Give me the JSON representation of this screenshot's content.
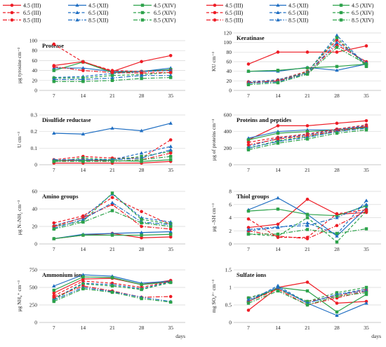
{
  "legend": [
    {
      "label": "4.5 (III)",
      "color": "#ee1c25",
      "dash": "solid",
      "marker": "circle"
    },
    {
      "label": "4.5 (XII)",
      "color": "#1f6ec2",
      "dash": "solid",
      "marker": "triangle"
    },
    {
      "label": "4.5 (XIV)",
      "color": "#2ca24a",
      "dash": "solid",
      "marker": "square"
    },
    {
      "label": "6.5 (III)",
      "color": "#ee1c25",
      "dash": "dash",
      "marker": "circle"
    },
    {
      "label": "6.5 (XII)",
      "color": "#1f6ec2",
      "dash": "dash",
      "marker": "triangle"
    },
    {
      "label": "6.5 (XIV)",
      "color": "#2ca24a",
      "dash": "dash",
      "marker": "square"
    },
    {
      "label": "8.5 (III)",
      "color": "#ee1c25",
      "dash": "dashdot",
      "marker": "circle"
    },
    {
      "label": "8.5 (XII)",
      "color": "#1f6ec2",
      "dash": "dashdot",
      "marker": "triangle"
    },
    {
      "label": "8.5 (XIV)",
      "color": "#2ca24a",
      "dash": "dashdot",
      "marker": "square"
    }
  ],
  "chart_data": [
    {
      "type": "line",
      "title": "Protease",
      "ylabel": "µg tyrosine cm⁻³",
      "xlabel": "",
      "x": [
        7,
        14,
        21,
        28,
        35
      ],
      "ylim": [
        0,
        100
      ],
      "yticks": [
        0,
        20,
        40,
        60,
        80,
        100
      ],
      "series": [
        {
          "name": "4.5 (III)",
          "values": [
            50,
            58,
            38,
            58,
            70
          ]
        },
        {
          "name": "4.5 (XII)",
          "values": [
            45,
            45,
            38,
            38,
            45
          ]
        },
        {
          "name": "4.5 (XIV)",
          "values": [
            40,
            57,
            36,
            38,
            42
          ]
        },
        {
          "name": "6.5 (III)",
          "values": [
            93,
            57,
            40,
            38,
            40
          ]
        },
        {
          "name": "6.5 (XII)",
          "values": [
            26,
            28,
            34,
            38,
            40
          ]
        },
        {
          "name": "6.5 (XIV)",
          "values": [
            25,
            25,
            30,
            32,
            36
          ]
        },
        {
          "name": "8.5 (III)",
          "values": [
            48,
            40,
            36,
            35,
            36
          ]
        },
        {
          "name": "8.5 (XII)",
          "values": [
            22,
            22,
            25,
            30,
            30
          ]
        },
        {
          "name": "8.5 (XIV)",
          "values": [
            18,
            18,
            20,
            24,
            26
          ]
        }
      ]
    },
    {
      "type": "line",
      "title": "Keratinase",
      "ylabel": "KU cm⁻³",
      "xlabel": "",
      "x": [
        7,
        14,
        21,
        28,
        35
      ],
      "ylim": [
        0,
        120
      ],
      "yticks": [
        0,
        20,
        40,
        60,
        80,
        100,
        120
      ],
      "series": [
        {
          "name": "4.5 (III)",
          "values": [
            55,
            80,
            80,
            80,
            93
          ]
        },
        {
          "name": "4.5 (XII)",
          "values": [
            40,
            40,
            48,
            42,
            55
          ]
        },
        {
          "name": "4.5 (XIV)",
          "values": [
            40,
            42,
            47,
            50,
            55
          ]
        },
        {
          "name": "6.5 (III)",
          "values": [
            18,
            22,
            40,
            105,
            55
          ]
        },
        {
          "name": "6.5 (XII)",
          "values": [
            18,
            22,
            38,
            115,
            52
          ]
        },
        {
          "name": "6.5 (XIV)",
          "values": [
            15,
            20,
            38,
            110,
            50
          ]
        },
        {
          "name": "8.5 (III)",
          "values": [
            16,
            20,
            36,
            95,
            60
          ]
        },
        {
          "name": "8.5 (XII)",
          "values": [
            15,
            18,
            36,
            100,
            58
          ]
        },
        {
          "name": "8.5 (XIV)",
          "values": [
            12,
            16,
            34,
            90,
            55
          ]
        }
      ]
    },
    {
      "type": "line",
      "title": "Disulfide reductase",
      "ylabel": "U cm⁻³",
      "xlabel": "",
      "x": [
        7,
        14,
        21,
        28,
        35
      ],
      "ylim": [
        0,
        0.3
      ],
      "yticks": [
        0,
        0.1,
        0.2,
        0.3
      ],
      "series": [
        {
          "name": "4.5 (III)",
          "values": [
            0.01,
            0.01,
            0.01,
            0.01,
            0.02
          ]
        },
        {
          "name": "4.5 (XII)",
          "values": [
            0.19,
            0.185,
            0.22,
            0.205,
            0.25
          ]
        },
        {
          "name": "4.5 (XIV)",
          "values": [
            0.025,
            0.025,
            0.025,
            0.02,
            0.03
          ]
        },
        {
          "name": "6.5 (III)",
          "values": [
            0.03,
            0.05,
            0.04,
            0.04,
            0.15
          ]
        },
        {
          "name": "6.5 (XII)",
          "values": [
            0.02,
            0.03,
            0.03,
            0.07,
            0.11
          ]
        },
        {
          "name": "6.5 (XIV)",
          "values": [
            0.02,
            0.04,
            0.03,
            0.05,
            0.08
          ]
        },
        {
          "name": "8.5 (III)",
          "values": [
            0.02,
            0.03,
            0.02,
            0.03,
            0.07
          ]
        },
        {
          "name": "8.5 (XII)",
          "values": [
            0.03,
            0.03,
            0.03,
            0.04,
            0.09
          ]
        },
        {
          "name": "8.5 (XIV)",
          "values": [
            0.02,
            0.02,
            0.02,
            0.03,
            0.05
          ]
        }
      ]
    },
    {
      "type": "line",
      "title": "Proteins and peptides",
      "ylabel": "µg of proteins cm⁻³",
      "xlabel": "",
      "x": [
        7,
        14,
        21,
        28,
        35
      ],
      "ylim": [
        0,
        600
      ],
      "yticks": [
        0,
        200,
        400,
        600
      ],
      "series": [
        {
          "name": "4.5 (III)",
          "values": [
            300,
            470,
            470,
            500,
            530
          ]
        },
        {
          "name": "4.5 (XII)",
          "values": [
            320,
            400,
            420,
            420,
            460
          ]
        },
        {
          "name": "4.5 (XIV)",
          "values": [
            300,
            380,
            400,
            420,
            450
          ]
        },
        {
          "name": "6.5 (III)",
          "values": [
            270,
            330,
            370,
            430,
            480
          ]
        },
        {
          "name": "6.5 (XII)",
          "values": [
            220,
            320,
            360,
            420,
            470
          ]
        },
        {
          "name": "6.5 (XIV)",
          "values": [
            200,
            290,
            340,
            400,
            450
          ]
        },
        {
          "name": "8.5 (III)",
          "values": [
            240,
            310,
            350,
            410,
            460
          ]
        },
        {
          "name": "8.5 (XII)",
          "values": [
            200,
            280,
            330,
            400,
            440
          ]
        },
        {
          "name": "8.5 (XIV)",
          "values": [
            180,
            260,
            310,
            380,
            420
          ]
        }
      ]
    },
    {
      "type": "line",
      "title": "Amino groups",
      "ylabel": "µg N–NH₂ cm⁻³",
      "xlabel": "",
      "x": [
        7,
        14,
        21,
        28,
        35
      ],
      "ylim": [
        0,
        60
      ],
      "yticks": [
        0,
        20,
        40,
        60
      ],
      "series": [
        {
          "name": "4.5 (III)",
          "values": [
            6,
            10,
            12,
            7,
            8
          ]
        },
        {
          "name": "4.5 (XII)",
          "values": [
            6,
            11,
            12,
            13,
            14
          ]
        },
        {
          "name": "4.5 (XIV)",
          "values": [
            6,
            10,
            10,
            10,
            11
          ]
        },
        {
          "name": "6.5 (III)",
          "values": [
            24,
            32,
            53,
            37,
            22
          ]
        },
        {
          "name": "6.5 (XII)",
          "values": [
            21,
            30,
            57,
            30,
            25
          ]
        },
        {
          "name": "6.5 (XIV)",
          "values": [
            20,
            26,
            58,
            28,
            23
          ]
        },
        {
          "name": "8.5 (III)",
          "values": [
            20,
            30,
            45,
            20,
            17
          ]
        },
        {
          "name": "8.5 (XII)",
          "values": [
            18,
            28,
            47,
            25,
            22
          ]
        },
        {
          "name": "8.5 (XIV)",
          "values": [
            17,
            25,
            38,
            24,
            20
          ]
        }
      ]
    },
    {
      "type": "line",
      "title": "Thiol groups",
      "ylabel": "µg –SH cm⁻³",
      "xlabel": "",
      "x": [
        7,
        14,
        21,
        28,
        35
      ],
      "ylim": [
        0,
        8
      ],
      "yticks": [
        0,
        2,
        4,
        6,
        8
      ],
      "series": [
        {
          "name": "4.5 (III)",
          "values": [
            2.5,
            3.0,
            6.8,
            4.5,
            4.8
          ]
        },
        {
          "name": "4.5 (XII)",
          "values": [
            5.2,
            7.0,
            4.5,
            1.2,
            5.5
          ]
        },
        {
          "name": "4.5 (XIV)",
          "values": [
            5.0,
            5.3,
            4.5,
            4.3,
            5.8
          ]
        },
        {
          "name": "6.5 (III)",
          "values": [
            3.8,
            1.0,
            1.0,
            4.6,
            5.2
          ]
        },
        {
          "name": "6.5 (XII)",
          "values": [
            2.0,
            2.5,
            3.2,
            1.5,
            6.6
          ]
        },
        {
          "name": "6.5 (XIV)",
          "values": [
            1.5,
            1.2,
            4.0,
            0.3,
            5.0
          ]
        },
        {
          "name": "8.5 (III)",
          "values": [
            2.0,
            1.2,
            0.8,
            2.8,
            5.0
          ]
        },
        {
          "name": "8.5 (XII)",
          "values": [
            2.2,
            2.6,
            2.8,
            4.0,
            6.0
          ]
        },
        {
          "name": "8.5 (XIV)",
          "values": [
            1.5,
            1.5,
            2.2,
            1.6,
            2.3
          ]
        }
      ]
    },
    {
      "type": "line",
      "title": "Ammonium ions",
      "ylabel": "µg NH₄⁺ cm⁻³",
      "xlabel": "days",
      "x": [
        7,
        14,
        21,
        28,
        35
      ],
      "ylim": [
        0,
        750
      ],
      "yticks": [
        0,
        250,
        500,
        750
      ],
      "series": [
        {
          "name": "4.5 (III)",
          "values": [
            420,
            620,
            630,
            540,
            600
          ]
        },
        {
          "name": "4.5 (XII)",
          "values": [
            520,
            680,
            660,
            560,
            590
          ]
        },
        {
          "name": "4.5 (XIV)",
          "values": [
            460,
            650,
            640,
            540,
            580
          ]
        },
        {
          "name": "6.5 (III)",
          "values": [
            380,
            590,
            560,
            500,
            590
          ]
        },
        {
          "name": "6.5 (XII)",
          "values": [
            340,
            560,
            540,
            480,
            580
          ]
        },
        {
          "name": "6.5 (XIV)",
          "values": [
            330,
            550,
            520,
            470,
            570
          ]
        },
        {
          "name": "8.5 (III)",
          "values": [
            360,
            520,
            450,
            360,
            370
          ]
        },
        {
          "name": "8.5 (XII)",
          "values": [
            320,
            500,
            440,
            360,
            300
          ]
        },
        {
          "name": "8.5 (XIV)",
          "values": [
            300,
            480,
            430,
            340,
            290
          ]
        }
      ]
    },
    {
      "type": "line",
      "title": "Sulfate ions",
      "ylabel": "mg SO₄²⁻ cm⁻³",
      "xlabel": "days",
      "x": [
        7,
        14,
        21,
        28,
        35
      ],
      "ylim": [
        0,
        1.5
      ],
      "yticks": [
        0,
        0.5,
        1,
        1.5
      ],
      "series": [
        {
          "name": "4.5 (III)",
          "values": [
            0.35,
            1.0,
            1.15,
            0.55,
            0.6
          ]
        },
        {
          "name": "4.5 (XII)",
          "values": [
            0.6,
            1.0,
            0.55,
            0.2,
            0.55
          ]
        },
        {
          "name": "4.5 (XIV)",
          "values": [
            0.6,
            1.0,
            0.9,
            0.3,
            0.8
          ]
        },
        {
          "name": "6.5 (III)",
          "values": [
            0.7,
            0.95,
            0.6,
            0.75,
            0.95
          ]
        },
        {
          "name": "6.5 (XII)",
          "values": [
            0.6,
            1.05,
            0.55,
            0.8,
            0.95
          ]
        },
        {
          "name": "6.5 (XIV)",
          "values": [
            0.7,
            0.95,
            0.6,
            0.85,
            1.0
          ]
        },
        {
          "name": "8.5 (III)",
          "values": [
            0.6,
            0.95,
            0.5,
            0.7,
            0.9
          ]
        },
        {
          "name": "8.5 (XII)",
          "values": [
            0.65,
            1.0,
            0.55,
            0.8,
            0.9
          ]
        },
        {
          "name": "8.5 (XIV)",
          "values": [
            0.55,
            0.9,
            0.5,
            0.75,
            0.85
          ]
        }
      ]
    }
  ]
}
